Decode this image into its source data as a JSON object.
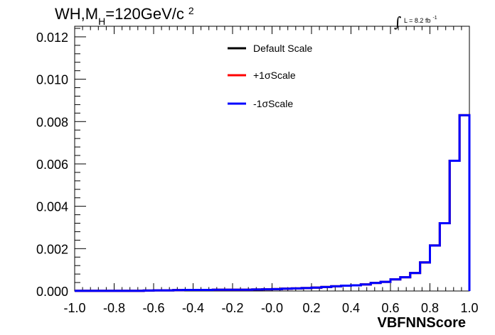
{
  "chart_data": {
    "type": "line",
    "title": {
      "prefix": "WH,M",
      "subscript": "H",
      "value": "=120GeV/c",
      "superscript": "2"
    },
    "luminosity": {
      "integral_symbol": "∫",
      "text": "L = 8.2 fb",
      "superscript": "-1"
    },
    "xlabel": "VBFNNScore",
    "ylabel": "",
    "xlim": [
      -1.0,
      1.0
    ],
    "ylim": [
      0,
      0.0125
    ],
    "x_tick_labels": [
      "-1.0",
      "-0.8",
      "-0.6",
      "-0.4",
      "-0.2",
      "-0.0",
      "0.2",
      "0.4",
      "0.6",
      "0.8",
      "1.0"
    ],
    "y_tick_labels": [
      "0.000",
      "0.002",
      "0.004",
      "0.006",
      "0.008",
      "0.010",
      "0.012"
    ],
    "bin_edges": [
      -1.0,
      -0.95,
      -0.9,
      -0.85,
      -0.8,
      -0.75,
      -0.7,
      -0.65,
      -0.6,
      -0.55,
      -0.5,
      -0.45,
      -0.4,
      -0.35,
      -0.3,
      -0.25,
      -0.2,
      -0.15,
      -0.1,
      -0.05,
      0.0,
      0.05,
      0.1,
      0.15,
      0.2,
      0.25,
      0.3,
      0.35,
      0.4,
      0.45,
      0.5,
      0.55,
      0.6,
      0.65,
      0.7,
      0.75,
      0.8,
      0.85,
      0.9,
      0.95,
      1.0
    ],
    "series": [
      {
        "name": "Default Scale",
        "color": "#000000",
        "values": [
          1e-05,
          1e-05,
          1e-05,
          1e-05,
          1e-05,
          1e-05,
          1e-05,
          2e-05,
          3e-05,
          3e-05,
          4e-05,
          5e-05,
          5e-05,
          5e-05,
          6e-05,
          6e-05,
          6e-05,
          6e-05,
          7e-05,
          8e-05,
          9e-05,
          0.00011,
          0.00012,
          0.00014,
          0.00016,
          0.00019,
          0.00022,
          0.00025,
          0.00027,
          0.00031,
          0.00038,
          0.00043,
          0.00055,
          0.00065,
          0.00085,
          0.00135,
          0.00215,
          0.0032,
          0.00615,
          0.0083
        ]
      },
      {
        "name": "+1σScale",
        "color": "#ff0000",
        "values": [
          1e-05,
          1e-05,
          1e-05,
          1e-05,
          1e-05,
          1e-05,
          1e-05,
          2e-05,
          3e-05,
          3e-05,
          4e-05,
          5e-05,
          5e-05,
          5e-05,
          6e-05,
          6e-05,
          6e-05,
          6e-05,
          7e-05,
          8e-05,
          9e-05,
          0.00011,
          0.00012,
          0.00014,
          0.00016,
          0.00019,
          0.00022,
          0.00025,
          0.00027,
          0.00031,
          0.00038,
          0.00043,
          0.00055,
          0.00065,
          0.00085,
          0.00135,
          0.00215,
          0.0032,
          0.00615,
          0.0083
        ]
      },
      {
        "name": "-1σScale",
        "color": "#0000ff",
        "values": [
          1e-05,
          1e-05,
          1e-05,
          1e-05,
          1e-05,
          1e-05,
          1e-05,
          2e-05,
          3e-05,
          3e-05,
          4e-05,
          5e-05,
          5e-05,
          5e-05,
          6e-05,
          6e-05,
          6e-05,
          6e-05,
          7e-05,
          8e-05,
          9e-05,
          0.00011,
          0.00012,
          0.00014,
          0.00016,
          0.00019,
          0.00022,
          0.00025,
          0.00027,
          0.00031,
          0.00038,
          0.00043,
          0.00055,
          0.00065,
          0.00085,
          0.00135,
          0.00215,
          0.0032,
          0.00615,
          0.0083
        ]
      }
    ],
    "legend": {
      "placement": "top-center",
      "entries": [
        "Default Scale",
        "+1σScale",
        "-1σScale"
      ]
    },
    "grid": false
  }
}
